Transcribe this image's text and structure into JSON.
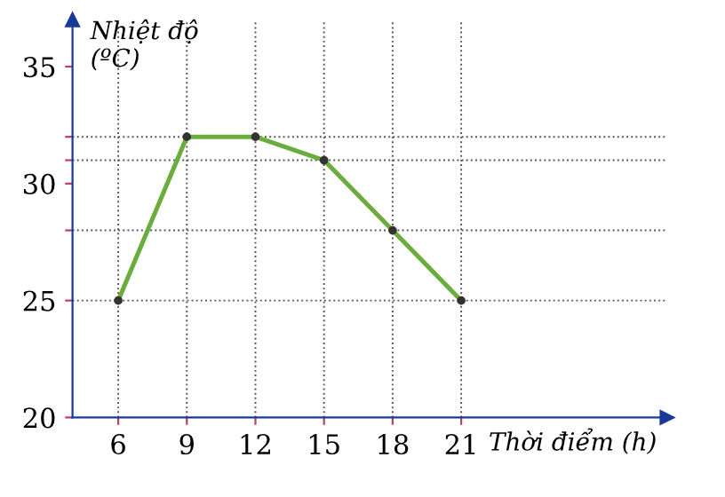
{
  "chart_data": {
    "type": "line",
    "xlabel": "Thời điểm (h)",
    "ylabel": "Nhiệt độ\n(ºC)",
    "x": [
      6,
      9,
      12,
      15,
      18,
      21
    ],
    "series": [
      {
        "color": "#6aad3d",
        "values": [
          25,
          32,
          32,
          31,
          28,
          25
        ]
      }
    ],
    "xlim": [
      4,
      30
    ],
    "ylim": [
      20,
      37
    ],
    "xticks": [
      6,
      9,
      12,
      15,
      18,
      21
    ],
    "yticks": [
      20,
      25,
      {
        "value": 28,
        "label": null
      },
      30,
      {
        "value": 31,
        "label": null
      },
      {
        "value": 32,
        "label": null
      },
      35
    ],
    "ref_lines": [
      {
        "axis": "y",
        "value": 25,
        "line_style": "dotted"
      },
      {
        "axis": "y",
        "value": 28,
        "line_style": "dotted"
      },
      {
        "axis": "y",
        "value": 31,
        "line_style": "dotted"
      },
      {
        "axis": "y",
        "value": 32,
        "line_style": "dotted"
      },
      {
        "axis": "x",
        "value": 6,
        "line_style": "dotted"
      },
      {
        "axis": "x",
        "value": 9,
        "line_style": "dotted"
      },
      {
        "axis": "x",
        "value": 12,
        "line_style": "dotted"
      },
      {
        "axis": "x",
        "value": 15,
        "line_style": "dotted"
      },
      {
        "axis": "x",
        "value": 18,
        "line_style": "dotted"
      },
      {
        "axis": "x",
        "value": 21,
        "line_style": "dotted"
      }
    ],
    "marker": "circle",
    "line_style": "solid",
    "legend": false
  }
}
